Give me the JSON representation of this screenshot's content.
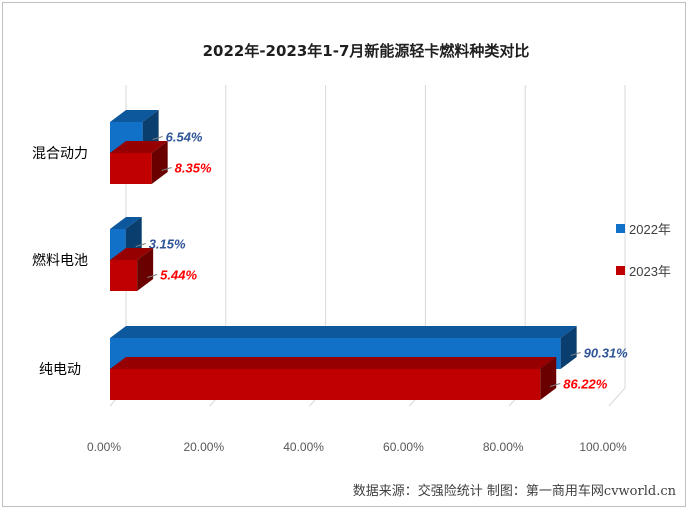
{
  "chart_data": {
    "type": "bar",
    "orientation": "horizontal",
    "style": "3d",
    "title": "2022年-2023年1-7月新能源轻卡燃料种类对比",
    "categories": [
      "混合动力",
      "燃料电池",
      "纯电动"
    ],
    "series": [
      {
        "name": "2022年",
        "values": [
          6.54,
          3.15,
          90.31
        ],
        "labels": [
          "6.54%",
          "3.15%",
          "90.31%"
        ],
        "color": "#1170c8",
        "label_color": "#2f5597"
      },
      {
        "name": "2023年",
        "values": [
          8.35,
          5.44,
          86.22
        ],
        "labels": [
          "8.35%",
          "5.44%",
          "86.22%"
        ],
        "color": "#c00000",
        "label_color": "#ff0000"
      }
    ],
    "xlim": [
      0,
      100
    ],
    "x_ticks": [
      "0.00%",
      "20.00%",
      "40.00%",
      "60.00%",
      "80.00%",
      "100.00%"
    ],
    "grid": true,
    "legend_position": "right"
  },
  "footer": {
    "source_text": "数据来源：交强险统计 制图：第一商用车网cvworld.cn"
  }
}
